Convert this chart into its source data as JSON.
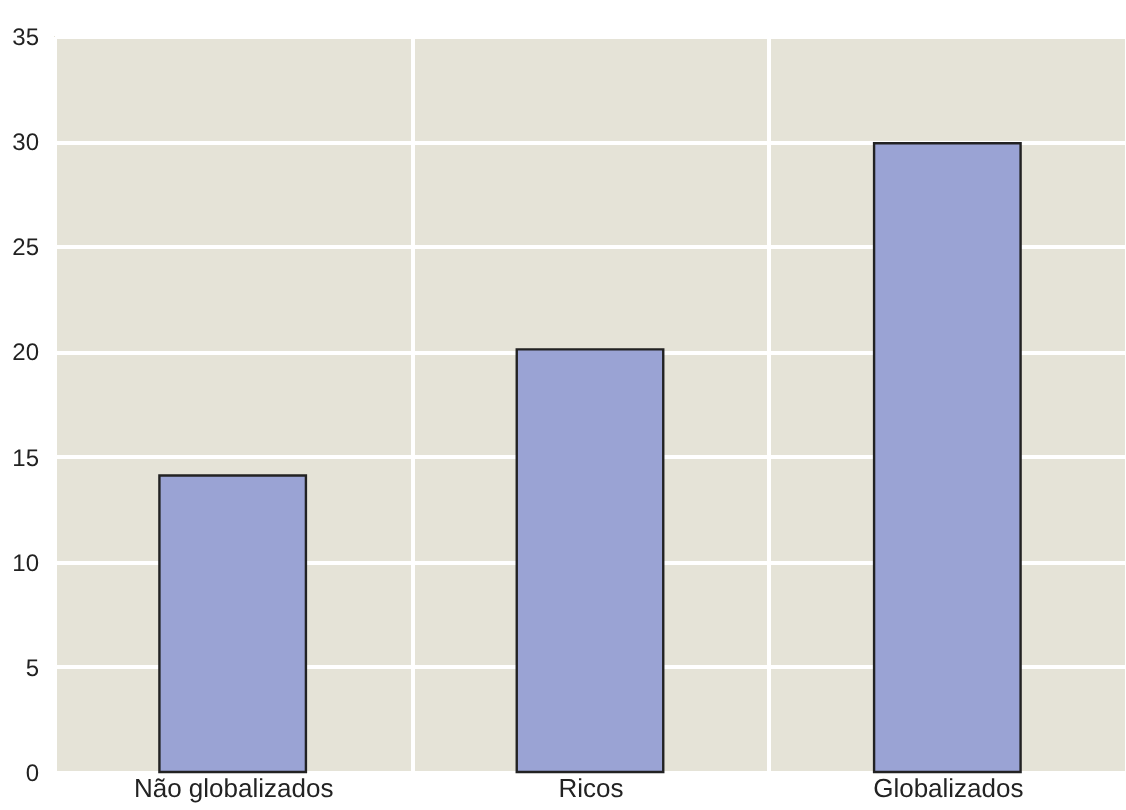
{
  "chart_data": {
    "type": "bar",
    "categories": [
      "Não globalizados",
      "Ricos",
      "Globalizados"
    ],
    "values": [
      14.1,
      20.1,
      29.9
    ],
    "color": "#9aa3d4",
    "ylim": [
      0,
      35
    ],
    "yticks": [
      0,
      5,
      10,
      15,
      20,
      25,
      30,
      35
    ],
    "grid": true
  }
}
